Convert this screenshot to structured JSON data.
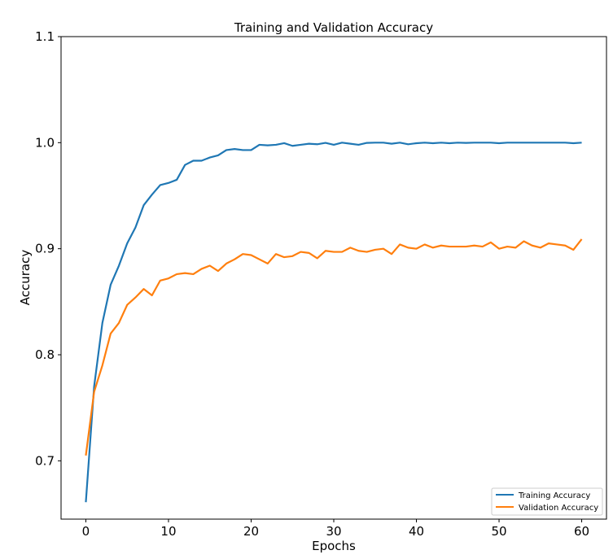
{
  "chart_data": {
    "type": "line",
    "title": "Training and Validation Accuracy",
    "xlabel": "Epochs",
    "ylabel": "Accuracy",
    "xlim": [
      -3,
      63
    ],
    "ylim": [
      0.645,
      1.1
    ],
    "xticks": [
      0,
      10,
      20,
      30,
      40,
      50,
      60
    ],
    "yticks": [
      0.7,
      0.8,
      0.9,
      1.0,
      1.1
    ],
    "xtick_labels": [
      "0",
      "10",
      "20",
      "30",
      "40",
      "50",
      "60"
    ],
    "ytick_labels": [
      "0.7",
      "0.8",
      "0.9",
      "1.0",
      "1.1"
    ],
    "grid": false,
    "legend_position": "lower-right",
    "x": [
      0,
      1,
      2,
      3,
      4,
      5,
      6,
      7,
      8,
      9,
      10,
      11,
      12,
      13,
      14,
      15,
      16,
      17,
      18,
      19,
      20,
      21,
      22,
      23,
      24,
      25,
      26,
      27,
      28,
      29,
      30,
      31,
      32,
      33,
      34,
      35,
      36,
      37,
      38,
      39,
      40,
      41,
      42,
      43,
      44,
      45,
      46,
      47,
      48,
      49,
      50,
      51,
      52,
      53,
      54,
      55,
      56,
      57,
      58,
      59,
      60
    ],
    "series": [
      {
        "name": "Training Accuracy",
        "color": "#1f77b4",
        "values": [
          0.661,
          0.77,
          0.83,
          0.866,
          0.884,
          0.905,
          0.92,
          0.941,
          0.951,
          0.96,
          0.962,
          0.965,
          0.979,
          0.983,
          0.983,
          0.986,
          0.988,
          0.993,
          0.994,
          0.993,
          0.993,
          0.998,
          0.9975,
          0.998,
          0.9995,
          0.997,
          0.998,
          0.999,
          0.9985,
          0.9998,
          0.998,
          1.0,
          0.999,
          0.998,
          0.9998,
          1.0,
          1.0,
          0.999,
          1.0,
          0.9985,
          0.9995,
          1.0,
          0.9995,
          1.0,
          0.9995,
          1.0,
          0.9998,
          1.0,
          1.0,
          1.0,
          0.9995,
          1.0,
          1.0,
          1.0,
          1.0,
          1.0,
          1.0,
          1.0,
          1.0,
          0.9995,
          1.0
        ]
      },
      {
        "name": "Validation Accuracy",
        "color": "#ff7f0e",
        "values": [
          0.705,
          0.765,
          0.79,
          0.82,
          0.83,
          0.847,
          0.854,
          0.862,
          0.856,
          0.87,
          0.872,
          0.876,
          0.877,
          0.876,
          0.881,
          0.884,
          0.879,
          0.886,
          0.89,
          0.895,
          0.894,
          0.89,
          0.886,
          0.895,
          0.892,
          0.893,
          0.897,
          0.896,
          0.891,
          0.898,
          0.897,
          0.897,
          0.901,
          0.898,
          0.897,
          0.899,
          0.9,
          0.895,
          0.904,
          0.901,
          0.9,
          0.904,
          0.901,
          0.903,
          0.902,
          0.902,
          0.902,
          0.903,
          0.902,
          0.906,
          0.9,
          0.902,
          0.901,
          0.907,
          0.903,
          0.901,
          0.905,
          0.904,
          0.903,
          0.899,
          0.909
        ]
      }
    ]
  }
}
